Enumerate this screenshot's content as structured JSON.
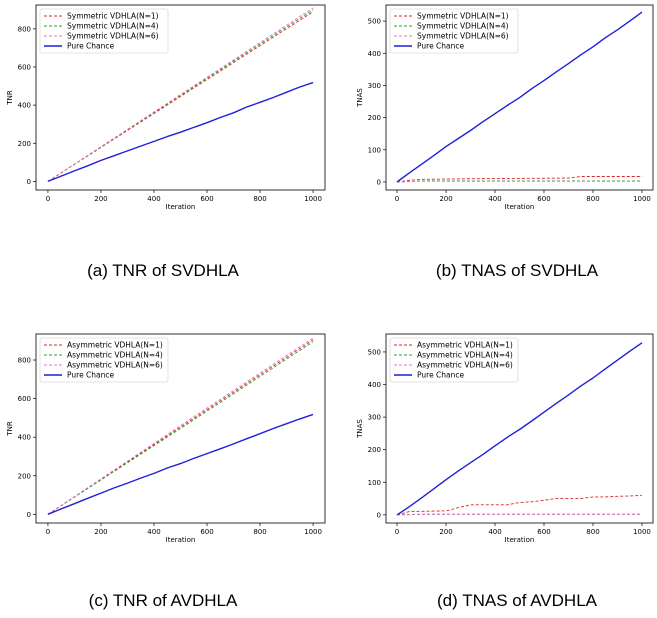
{
  "chart_data": [
    {
      "type": "line",
      "caption": "(a) TNR of SVDHLA",
      "xlabel": "Iteration",
      "ylabel": "TNR",
      "xlim": [
        -45,
        1045
      ],
      "ylim": [
        -45,
        925
      ],
      "xticks": [
        0,
        200,
        400,
        600,
        800,
        1000
      ],
      "yticks": [
        0,
        200,
        400,
        600,
        800
      ],
      "legend": "top-left",
      "series": [
        {
          "name": "Symmetric VDHLA(N=1)",
          "color": "#d62728",
          "dash": true,
          "x": [
            0,
            500,
            1000
          ],
          "y": [
            0,
            445,
            890
          ]
        },
        {
          "name": "Symmetric VDHLA(N=4)",
          "color": "#2ca02c",
          "dash": true,
          "x": [
            0,
            500,
            1000
          ],
          "y": [
            0,
            451,
            900
          ]
        },
        {
          "name": "Symmetric VDHLA(N=6)",
          "color": "#e377c2",
          "dash": true,
          "x": [
            0,
            500,
            1000
          ],
          "y": [
            0,
            455,
            910
          ]
        },
        {
          "name": "Pure Chance",
          "color": "#1f1fdd",
          "dash": false,
          "x": [
            0,
            50,
            100,
            150,
            200,
            250,
            300,
            350,
            400,
            450,
            500,
            550,
            600,
            650,
            700,
            750,
            800,
            850,
            900,
            950,
            1000
          ],
          "y": [
            0,
            28,
            55,
            82,
            110,
            135,
            160,
            185,
            210,
            235,
            258,
            283,
            308,
            335,
            360,
            390,
            415,
            440,
            468,
            495,
            518
          ]
        }
      ]
    },
    {
      "type": "line",
      "caption": "(b) TNAS of SVDHLA",
      "xlabel": "Iteration",
      "ylabel": "TNAS",
      "xlim": [
        -45,
        1045
      ],
      "ylim": [
        -25,
        550
      ],
      "xticks": [
        0,
        200,
        400,
        600,
        800,
        1000
      ],
      "yticks": [
        0,
        100,
        200,
        300,
        400,
        500
      ],
      "legend": "top-left",
      "series": [
        {
          "name": "Symmetric VDHLA(N=1)",
          "color": "#d62728",
          "dash": true,
          "x": [
            0,
            50,
            100,
            300,
            700,
            750,
            1000
          ],
          "y": [
            0,
            5,
            8,
            10,
            12,
            17,
            17
          ]
        },
        {
          "name": "Symmetric VDHLA(N=4)",
          "color": "#2ca02c",
          "dash": true,
          "x": [
            0,
            100,
            1000
          ],
          "y": [
            0,
            3,
            3
          ]
        },
        {
          "name": "Symmetric VDHLA(N=6)",
          "color": "#e377c2",
          "dash": true,
          "x": [
            0,
            100,
            1000
          ],
          "y": [
            0,
            2,
            2
          ]
        },
        {
          "name": "Pure Chance",
          "color": "#1f1fdd",
          "dash": false,
          "x": [
            0,
            50,
            100,
            150,
            200,
            250,
            300,
            350,
            400,
            450,
            500,
            550,
            600,
            650,
            700,
            750,
            800,
            850,
            900,
            950,
            1000
          ],
          "y": [
            0,
            28,
            55,
            82,
            110,
            135,
            160,
            187,
            212,
            238,
            262,
            290,
            315,
            342,
            368,
            395,
            420,
            448,
            473,
            500,
            528
          ]
        }
      ]
    },
    {
      "type": "line",
      "caption": "(c) TNR of AVDHLA",
      "xlabel": "Iteration",
      "ylabel": "TNR",
      "xlim": [
        -45,
        1045
      ],
      "ylim": [
        -45,
        935
      ],
      "xticks": [
        0,
        200,
        400,
        600,
        800,
        1000
      ],
      "yticks": [
        0,
        200,
        400,
        600,
        800
      ],
      "legend": "top-left",
      "series": [
        {
          "name": "Asymmetric VDHLA(N=1)",
          "color": "#d62728",
          "dash": true,
          "x": [
            0,
            500,
            1000
          ],
          "y": [
            0,
            452,
            905
          ]
        },
        {
          "name": "Asymmetric VDHLA(N=4)",
          "color": "#2ca02c",
          "dash": true,
          "x": [
            0,
            500,
            1000
          ],
          "y": [
            0,
            445,
            895
          ]
        },
        {
          "name": "Asymmetric VDHLA(N=6)",
          "color": "#e377c2",
          "dash": true,
          "x": [
            0,
            500,
            1000
          ],
          "y": [
            0,
            460,
            915
          ]
        },
        {
          "name": "Pure Chance",
          "color": "#1f1fdd",
          "dash": false,
          "x": [
            0,
            50,
            100,
            150,
            200,
            250,
            300,
            350,
            400,
            450,
            500,
            550,
            600,
            650,
            700,
            750,
            800,
            850,
            900,
            950,
            1000
          ],
          "y": [
            0,
            28,
            55,
            83,
            110,
            137,
            162,
            188,
            212,
            240,
            263,
            290,
            315,
            340,
            365,
            392,
            418,
            445,
            470,
            495,
            518
          ]
        }
      ]
    },
    {
      "type": "line",
      "caption": "(d) TNAS of AVDHLA",
      "xlabel": "Iteration",
      "ylabel": "TNAS",
      "xlim": [
        -45,
        1045
      ],
      "ylim": [
        -25,
        555
      ],
      "xticks": [
        0,
        200,
        400,
        600,
        800,
        1000
      ],
      "yticks": [
        0,
        100,
        200,
        300,
        400,
        500
      ],
      "legend": "top-left",
      "series": [
        {
          "name": "Asymmetric VDHLA(N=1)",
          "color": "#d62728",
          "dash": true,
          "x": [
            0,
            50,
            100,
            200,
            250,
            300,
            450,
            500,
            550,
            600,
            650,
            700,
            750,
            800,
            850,
            900,
            950,
            1000
          ],
          "y": [
            0,
            10,
            11,
            12,
            22,
            31,
            31,
            38,
            40,
            45,
            50,
            50,
            50,
            55,
            55,
            57,
            58,
            60
          ]
        },
        {
          "name": "Asymmetric VDHLA(N=4)",
          "color": "#2ca02c",
          "dash": true,
          "x": [
            0,
            100,
            1000
          ],
          "y": [
            0,
            2,
            2
          ]
        },
        {
          "name": "Asymmetric VDHLA(N=6)",
          "color": "#e377c2",
          "dash": true,
          "x": [
            0,
            100,
            1000
          ],
          "y": [
            0,
            1,
            1
          ]
        },
        {
          "name": "Pure Chance",
          "color": "#1f1fdd",
          "dash": false,
          "x": [
            0,
            50,
            100,
            150,
            200,
            250,
            300,
            350,
            400,
            450,
            500,
            550,
            600,
            650,
            700,
            750,
            800,
            850,
            900,
            950,
            1000
          ],
          "y": [
            0,
            25,
            52,
            80,
            108,
            135,
            160,
            185,
            212,
            238,
            262,
            288,
            315,
            342,
            368,
            395,
            420,
            448,
            475,
            502,
            528
          ]
        }
      ]
    }
  ]
}
